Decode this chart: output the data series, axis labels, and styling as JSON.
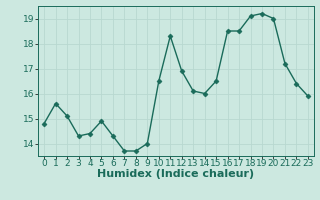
{
  "x": [
    0,
    1,
    2,
    3,
    4,
    5,
    6,
    7,
    8,
    9,
    10,
    11,
    12,
    13,
    14,
    15,
    16,
    17,
    18,
    19,
    20,
    21,
    22,
    23
  ],
  "y": [
    14.8,
    15.6,
    15.1,
    14.3,
    14.4,
    14.9,
    14.3,
    13.7,
    13.7,
    14.0,
    16.5,
    18.3,
    16.9,
    16.1,
    16.0,
    16.5,
    18.5,
    18.5,
    19.1,
    19.2,
    19.0,
    17.2,
    16.4,
    15.9
  ],
  "bg_color": "#cce8e0",
  "line_color": "#1a6b5a",
  "marker_color": "#1a6b5a",
  "grid_color": "#b8d8d0",
  "xlabel": "Humidex (Indice chaleur)",
  "ylabel": "",
  "xlim": [
    -0.5,
    23.5
  ],
  "ylim": [
    13.5,
    19.5
  ],
  "yticks": [
    14,
    15,
    16,
    17,
    18,
    19
  ],
  "xticks": [
    0,
    1,
    2,
    3,
    4,
    5,
    6,
    7,
    8,
    9,
    10,
    11,
    12,
    13,
    14,
    15,
    16,
    17,
    18,
    19,
    20,
    21,
    22,
    23
  ],
  "tick_fontsize": 6.5,
  "label_fontsize": 8,
  "line_width": 1.0,
  "marker_size": 2.5
}
